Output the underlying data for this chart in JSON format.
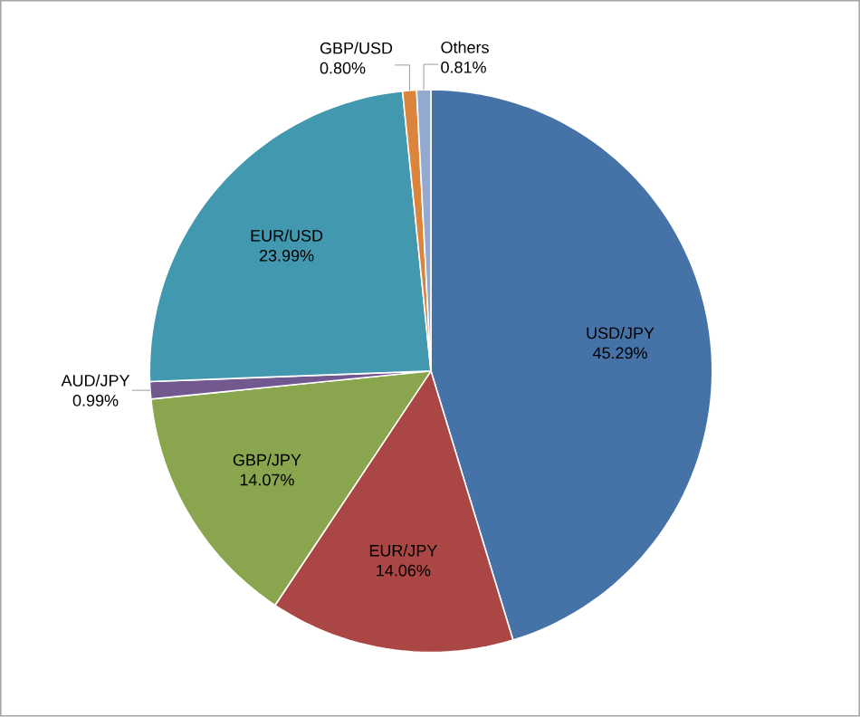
{
  "chart_data": {
    "type": "pie",
    "categories": [
      "USD/JPY",
      "EUR/JPY",
      "GBP/JPY",
      "AUD/JPY",
      "EUR/USD",
      "GBP/USD",
      "Others"
    ],
    "values": [
      45.29,
      14.06,
      14.07,
      0.99,
      23.99,
      0.8,
      0.81
    ],
    "value_labels": [
      "45.29%",
      "14.06%",
      "14.07%",
      "0.99%",
      "23.99%",
      "0.80%",
      "0.81%"
    ],
    "colors": [
      "#4572a7",
      "#aa4643",
      "#89a54e",
      "#71588f",
      "#4198af",
      "#db843d",
      "#93a9cf"
    ]
  }
}
